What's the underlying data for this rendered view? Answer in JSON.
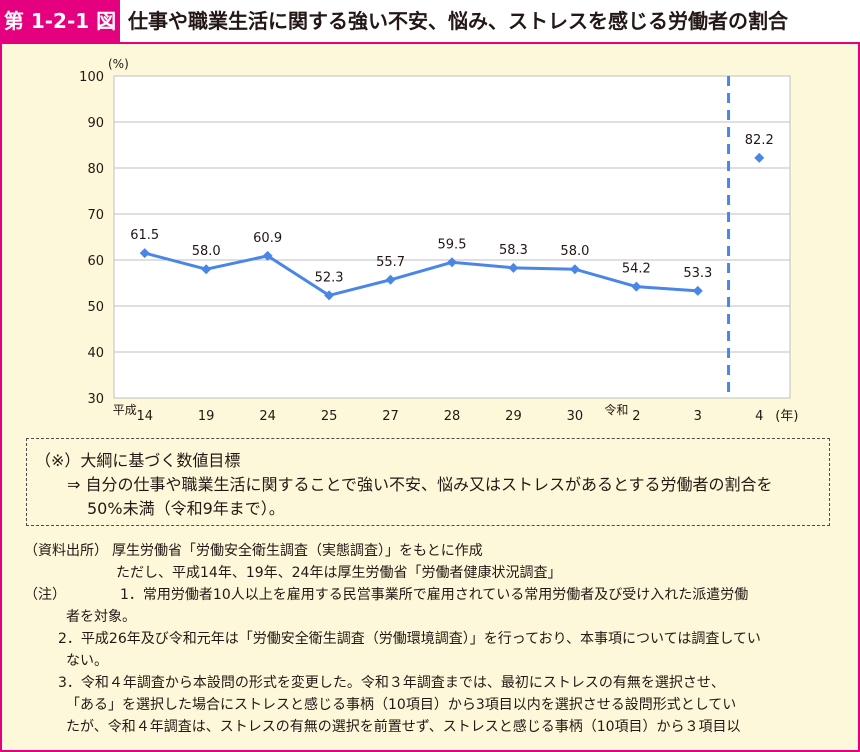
{
  "header": {
    "figure_label": "第 1-2-1 図",
    "title": "仕事や職業生活に関する強い不安、悩み、ストレスを感じる労働者の割合"
  },
  "colors": {
    "accent": "#e4007f",
    "panel_bg": "#fdf8d9",
    "line": "#4a86e8"
  },
  "chart_data": {
    "type": "line",
    "title": "",
    "xlabel": "(年)",
    "ylabel": "(%)",
    "ylim": [
      30,
      100
    ],
    "yticks": [
      30,
      40,
      50,
      60,
      70,
      80,
      90,
      100
    ],
    "grid": true,
    "era_labels": [
      {
        "text": "平成",
        "at_category": "14"
      },
      {
        "text": "令和",
        "at_category": "2"
      }
    ],
    "categories": [
      "14",
      "19",
      "24",
      "25",
      "27",
      "28",
      "29",
      "30",
      "2",
      "3",
      "4"
    ],
    "series": [
      {
        "values": [
          61.5,
          58.0,
          60.9,
          52.3,
          55.7,
          59.5,
          58.3,
          58.0,
          54.2,
          53.3,
          null
        ],
        "value_labels": [
          "61.5",
          "58.0",
          "60.9",
          "52.3",
          "55.7",
          "59.5",
          "58.3",
          "58.0",
          "54.2",
          "53.3",
          ""
        ]
      },
      {
        "values": [
          null,
          null,
          null,
          null,
          null,
          null,
          null,
          null,
          null,
          null,
          82.2
        ],
        "value_labels": [
          "",
          "",
          "",
          "",
          "",
          "",
          "",
          "",
          "",
          "",
          "82.2"
        ]
      }
    ],
    "annotations": [
      "dashed vertical divider between 3 and 4"
    ]
  },
  "note_box": {
    "line1": "（※）大綱に基づく数値目標",
    "line2": "⇒ 自分の仕事や職業生活に関することで強い不安、悩み又はストレスがあるとする労働者の割合を",
    "line3": "50%未満（令和9年まで）。"
  },
  "footnotes": {
    "source_label": "（資料出所）",
    "source_text": "厚生労働省「労働安全衛生調査（実態調査）」をもとに作成",
    "source_text2": "ただし、平成14年、19年、24年は厚生労働省「労働者健康状況調査」",
    "note_label": "（注）",
    "note1_a": "1．常用労働者10人以上を雇用する民営事業所で雇用されている常用労働者及び受け入れた派遣労働",
    "note1_b": "者を対象。",
    "note2_a": "2．平成26年及び令和元年は「労働安全衛生調査（労働環境調査）」を行っており、本事項については調査してい",
    "note2_b": "ない。",
    "note3_a": "3．令和４年調査から本設問の形式を変更した。令和３年調査までは、最初にストレスの有無を選択させ、",
    "note3_b": "「ある」を選択した場合にストレスと感じる事柄（10項目）から3項目以内を選択させる設問形式としてい",
    "note3_c": "たが、令和４年調査は、ストレスの有無の選択を前置せず、ストレスと感じる事柄（10項目）から３項目以"
  }
}
